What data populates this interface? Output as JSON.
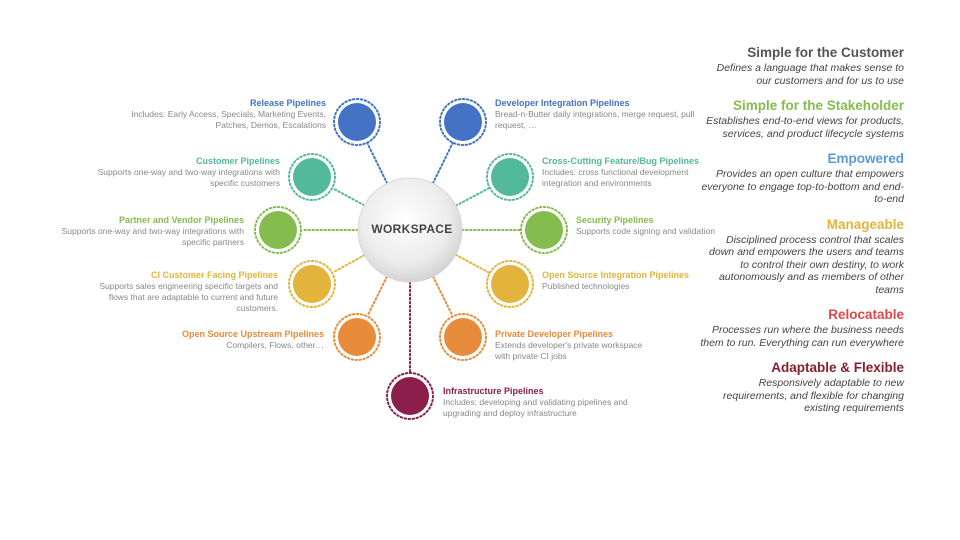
{
  "hub": {
    "label": "WORKSPACE"
  },
  "colors": {
    "blue": "#4472C4",
    "teal": "#52B99B",
    "green": "#84BD4E",
    "yellow": "#E2B43C",
    "orange": "#E88B3A",
    "maroon": "#8B1E4A"
  },
  "pipelines": [
    {
      "id": "release",
      "title": "Release Pipelines",
      "desc": "Includes: Early Access, Specials, Marketing Events, Patches, Demos, Escalations",
      "color": "blue",
      "icon": "circle-node-icon"
    },
    {
      "id": "customer",
      "title": "Customer Pipelines",
      "desc": "Supports one-way and two-way integrations with specific customers",
      "color": "teal",
      "icon": "circle-node-icon"
    },
    {
      "id": "partner-vendor",
      "title": "Partner and Vendor Pipelines",
      "desc": "Supports one-way and two-way integrations with specific partners",
      "color": "green",
      "icon": "circle-node-icon"
    },
    {
      "id": "ci-customer-facing",
      "title": "CI Customer Facing Pipelines",
      "desc": "Supports sales engineering specific targets and flows that are adaptable to current and future customers.",
      "color": "yellow",
      "icon": "circle-node-icon"
    },
    {
      "id": "open-source-upstream",
      "title": "Open Source Upstream Pipelines",
      "desc": "Compilers, Flows, other…",
      "color": "orange",
      "icon": "circle-node-icon"
    },
    {
      "id": "developer-integration",
      "title": "Developer Integration Pipelines",
      "desc": "Bread-n-Butter daily integrations, merge request, pull request, …",
      "color": "blue",
      "icon": "circle-node-icon"
    },
    {
      "id": "cross-cutting",
      "title": "Cross-Cutting Feature/Bug Pipelines",
      "desc": "Includes: cross functional development integration and environments",
      "color": "teal",
      "icon": "circle-node-icon"
    },
    {
      "id": "security",
      "title": "Security Pipelines",
      "desc": "Supports code signing and validation",
      "color": "green",
      "icon": "circle-node-icon"
    },
    {
      "id": "open-source-integration",
      "title": "Open Source Integration Pipelines",
      "desc": "Published technologies",
      "color": "yellow",
      "icon": "circle-node-icon"
    },
    {
      "id": "private-developer",
      "title": "Private Developer Pipelines",
      "desc": "Extends developer's private workspace with private CI jobs",
      "color": "orange",
      "icon": "circle-node-icon"
    },
    {
      "id": "infrastructure",
      "title": "Infrastructure Pipelines",
      "desc": "Includes: developing and validating pipelines and upgrading and deploy infrastructure",
      "color": "maroon",
      "icon": "circle-node-icon"
    }
  ],
  "principles": [
    {
      "title": "Simple for the Customer",
      "desc": "Defines a language that makes sense to our customers and for us to use",
      "color": "#555555"
    },
    {
      "title": "Simple for the Stakeholder",
      "desc": "Establishes end-to-end views for products, services, and product lifecycle  systems",
      "color": "#84BD4E"
    },
    {
      "title": "Empowered",
      "desc": "Provides an open culture that empowers everyone to engage top-to-bottom and end-to-end",
      "color": "#5B9BD5"
    },
    {
      "title": "Manageable",
      "desc": "Disciplined process control that scales down and empowers the users and teams to control their own destiny, to work autonomously and as members of other teams",
      "color": "#E2B43C"
    },
    {
      "title": "Relocatable",
      "desc": "Processes run where the business needs them to run. Everything can run everywhere",
      "color": "#E04848"
    },
    {
      "title": "Adaptable & Flexible",
      "desc": "Responsively adaptable to new requirements, and flexible for changing  existing requirements",
      "color": "#8B1E2E"
    }
  ]
}
